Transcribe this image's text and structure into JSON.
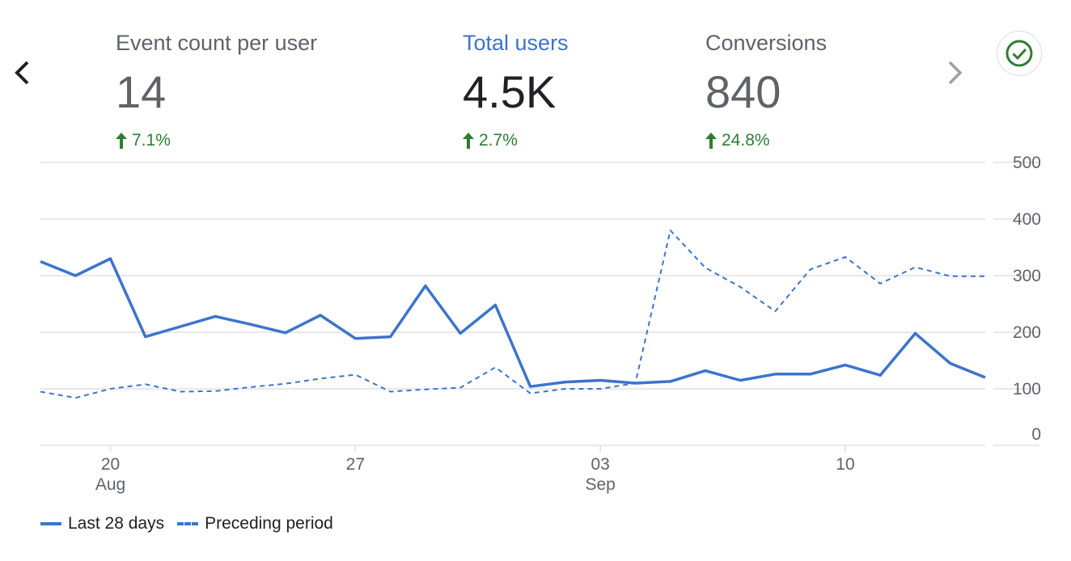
{
  "metrics": [
    {
      "label": "Event count per user",
      "value": "14",
      "change": "7.1%",
      "active": false
    },
    {
      "label": "Total users",
      "value": "4.5K",
      "change": "2.7%",
      "active": true
    },
    {
      "label": "Conversions",
      "value": "840",
      "change": "24.8%",
      "active": false
    }
  ],
  "nav": {
    "prev_icon": "chevron-left-icon",
    "next_icon": "chevron-right-icon",
    "check_icon": "check-circle-icon"
  },
  "colors": {
    "accent": "#3c74cc",
    "positive": "#2e7d32",
    "grid": "#e0e0e0",
    "label": "#5f6368"
  },
  "chart_data": {
    "type": "line",
    "ylim": [
      0,
      500
    ],
    "y_ticks": [
      0,
      100,
      200,
      300,
      400,
      500
    ],
    "x_ticks": [
      {
        "index": 2,
        "day": "20",
        "month": "Aug"
      },
      {
        "index": 9,
        "day": "27",
        "month": ""
      },
      {
        "index": 16,
        "day": "03",
        "month": "Sep"
      },
      {
        "index": 23,
        "day": "10",
        "month": ""
      }
    ],
    "series": [
      {
        "name": "Last 28 days",
        "style": "solid",
        "values": [
          325,
          300,
          330,
          192,
          210,
          228,
          214,
          199,
          230,
          189,
          192,
          282,
          198,
          248,
          104,
          112,
          115,
          110,
          113,
          132,
          115,
          126,
          126,
          142,
          124,
          198,
          145,
          120
        ]
      },
      {
        "name": "Preceding period",
        "style": "dashed",
        "values": [
          95,
          84,
          100,
          108,
          95,
          96,
          103,
          109,
          118,
          125,
          95,
          99,
          102,
          138,
          92,
          100,
          100,
          110,
          380,
          314,
          280,
          237,
          311,
          333,
          286,
          315,
          299,
          299
        ]
      }
    ]
  }
}
